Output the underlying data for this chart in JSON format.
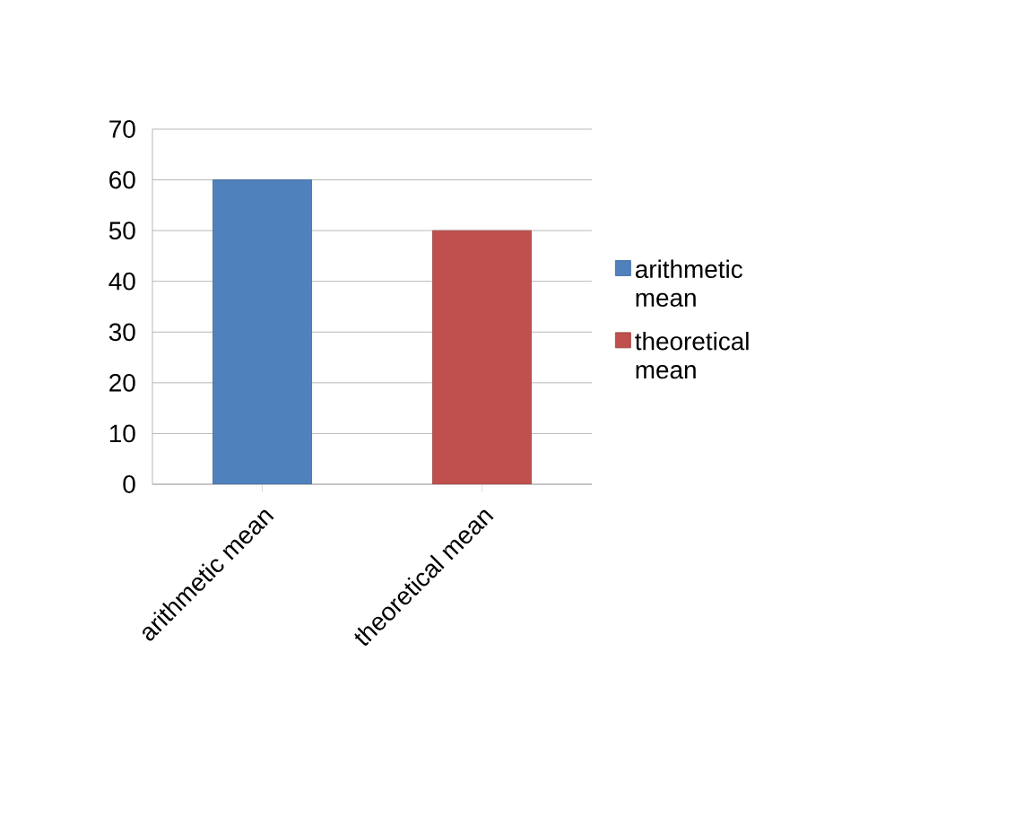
{
  "chart_data": {
    "type": "bar",
    "categories": [
      "arithmetic mean",
      "theoretical mean"
    ],
    "series": [
      {
        "name": "arithmetic mean",
        "color": "#4f81bd",
        "values": [
          60,
          null
        ]
      },
      {
        "name": "theoretical mean",
        "color": "#c0504d",
        "values": [
          null,
          50
        ]
      }
    ],
    "ylim": [
      0,
      70
    ],
    "yticks": [
      0,
      10,
      20,
      30,
      40,
      50,
      60,
      70
    ],
    "grid": "y",
    "legend": "right"
  }
}
